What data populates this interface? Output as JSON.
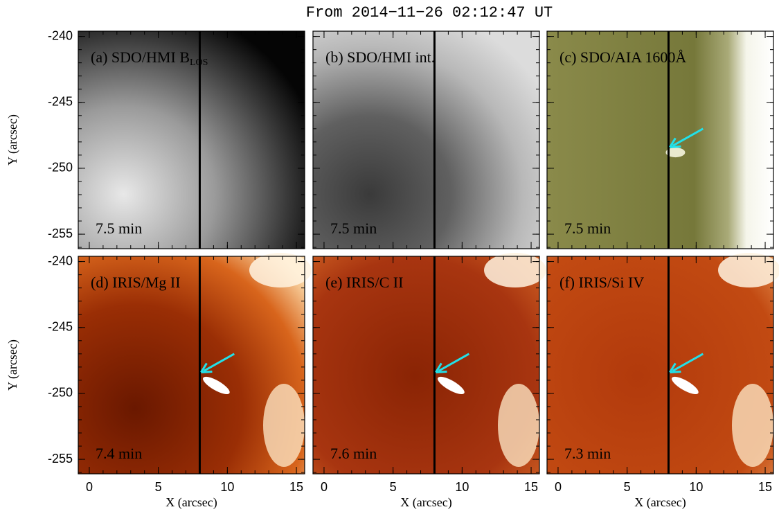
{
  "title": "From 2014−11−26 02:12:47 UT",
  "axes": {
    "x_label": "X (arcsec)",
    "y_label": "Y (arcsec)",
    "xlim": [
      -0.8,
      15.6
    ],
    "xticks": [
      0,
      5,
      10,
      15
    ],
    "ylim": [
      -256.1,
      -239.6
    ],
    "yticks": [
      -240,
      -245,
      -250,
      -255
    ]
  },
  "panels": [
    {
      "label": "(a) SDO/HMI B",
      "subscript": "LOS",
      "time": "7.5 min"
    },
    {
      "label": "(b) SDO/HMI int.",
      "time": "7.5 min"
    },
    {
      "label": "(c) SDO/AIA 1600Å",
      "time": "7.5 min"
    },
    {
      "label": "(d) IRIS/Mg II",
      "time": "7.4 min"
    },
    {
      "label": "(e) IRIS/C II",
      "time": "7.6 min"
    },
    {
      "label": "(f) IRIS/Si IV",
      "time": "7.3 min"
    }
  ]
}
